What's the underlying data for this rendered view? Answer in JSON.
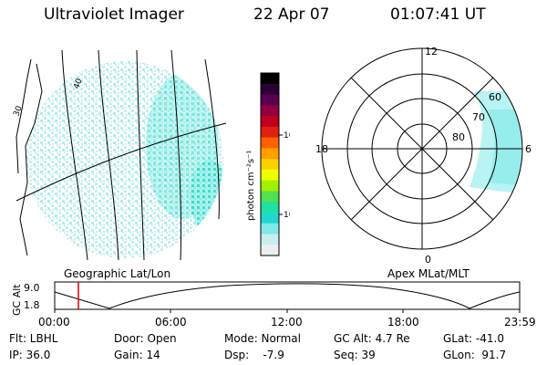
{
  "header": {
    "title": "Ultraviolet Imager",
    "date": "22 Apr 07",
    "time": "01:07:41 UT"
  },
  "left_panel": {
    "caption": "Geographic Lat/Lon",
    "marks": [
      "30",
      "40"
    ]
  },
  "colorbar": {
    "unit_label": "photon cm⁻²s⁻¹",
    "ticks": [
      "100",
      "10"
    ],
    "colors": [
      "#000000",
      "#2a0035",
      "#5a0050",
      "#900040",
      "#c00020",
      "#e02010",
      "#ff6000",
      "#ffa000",
      "#ffd000",
      "#eeff00",
      "#a0f000",
      "#50e050",
      "#20e0a0",
      "#20d8d0",
      "#80e8e8",
      "#c8eeee",
      "#e8f0f0"
    ]
  },
  "right_panel": {
    "caption": "Apex MLat/MLT",
    "mlt_labels": [
      "12",
      "18",
      "6",
      "0"
    ],
    "lat_labels": [
      "60",
      "70",
      "80"
    ]
  },
  "timeline": {
    "ylabel": "GC Alt",
    "y_ticks": [
      "9.0",
      "1.8"
    ],
    "x_ticks": [
      "00:00",
      "06:00",
      "12:00",
      "18:00",
      "23:59"
    ],
    "marker_color": "#dd0000"
  },
  "info": {
    "row1": [
      "Flt: LBHL",
      "Door: Open",
      "Mode: Normal",
      "GC Alt: 4.7 Re",
      "GLat: -41.0"
    ],
    "row2": [
      "IP: 36.0",
      "Gain: 14",
      "Dsp:    -7.9",
      "Seq: 39",
      "GLon:  91.7"
    ]
  },
  "colors": {
    "cyan_dense": "#30e0c0",
    "cyan_light": "#a8f0f0",
    "pale": "#dce8e8"
  }
}
